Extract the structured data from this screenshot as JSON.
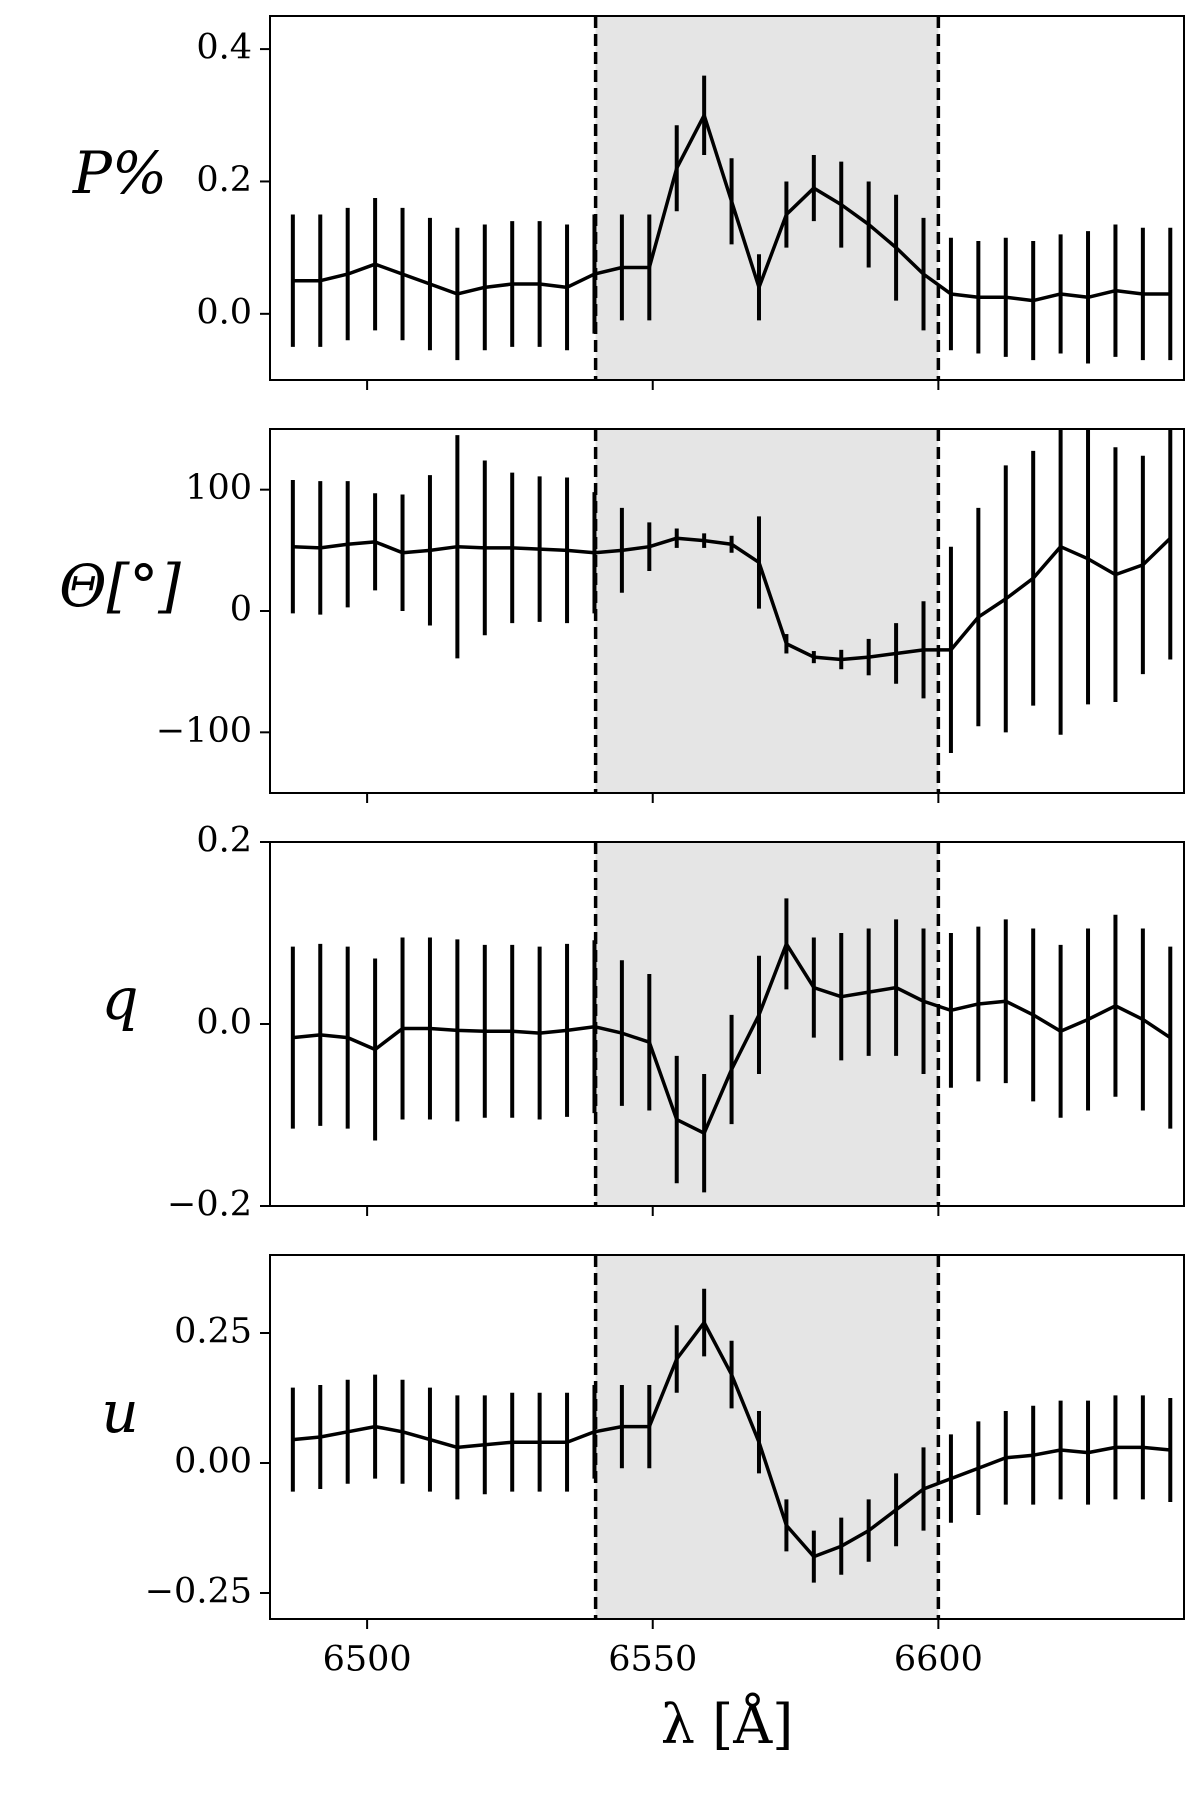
{
  "chart_data": [
    {
      "type": "line",
      "ylabel": "P%",
      "xlim": [
        6483,
        6643
      ],
      "xticks": [
        6500,
        6550,
        6600
      ],
      "highlight": [
        6540,
        6600
      ],
      "ylim": [
        -0.1,
        0.45
      ],
      "yticks": [
        {
          "value": 0,
          "label": "0.0"
        },
        0.2,
        0.4
      ],
      "x": [
        6487.0,
        6491.8,
        6496.6,
        6501.4,
        6506.2,
        6511.0,
        6515.8,
        6520.6,
        6525.4,
        6530.2,
        6535.0,
        6539.8,
        6544.6,
        6549.4,
        6554.2,
        6559.0,
        6563.8,
        6568.6,
        6573.4,
        6578.2,
        6583.0,
        6587.8,
        6592.6,
        6597.4,
        6602.2,
        6607.0,
        6611.8,
        6616.6,
        6621.4,
        6626.2,
        6631.0,
        6635.8,
        6640.6
      ],
      "values": [
        0.05,
        0.05,
        0.06,
        0.075,
        0.06,
        0.045,
        0.03,
        0.04,
        0.045,
        0.045,
        0.04,
        0.06,
        0.07,
        0.07,
        0.22,
        0.3,
        0.17,
        0.04,
        0.15,
        0.19,
        0.165,
        0.135,
        0.1,
        0.06,
        0.03,
        0.025,
        0.025,
        0.02,
        0.03,
        0.025,
        0.035,
        0.03,
        0.03
      ],
      "errors": [
        0.1,
        0.1,
        0.1,
        0.1,
        0.1,
        0.1,
        0.1,
        0.095,
        0.095,
        0.095,
        0.095,
        0.09,
        0.08,
        0.08,
        0.065,
        0.06,
        0.065,
        0.05,
        0.05,
        0.05,
        0.065,
        0.065,
        0.08,
        0.085,
        0.085,
        0.085,
        0.09,
        0.09,
        0.09,
        0.1,
        0.1,
        0.1,
        0.1
      ]
    },
    {
      "type": "line",
      "ylabel": "Θ[°]",
      "xlim": [
        6483,
        6643
      ],
      "xticks": [
        6500,
        6550,
        6600
      ],
      "highlight": [
        6540,
        6600
      ],
      "ylim": [
        -150,
        150
      ],
      "yticks": [
        {
          "value": -100,
          "label": "−100"
        },
        0,
        100
      ],
      "x": [
        6487.0,
        6491.8,
        6496.6,
        6501.4,
        6506.2,
        6511.0,
        6515.8,
        6520.6,
        6525.4,
        6530.2,
        6535.0,
        6539.8,
        6544.6,
        6549.4,
        6554.2,
        6559.0,
        6563.8,
        6568.6,
        6573.4,
        6578.2,
        6583.0,
        6587.8,
        6592.6,
        6597.4,
        6602.2,
        6607.0,
        6611.8,
        6616.6,
        6621.4,
        6626.2,
        6631.0,
        6635.8,
        6640.6
      ],
      "values": [
        53,
        52,
        55,
        57,
        48,
        50,
        53,
        52,
        52,
        51,
        50,
        48,
        50,
        53,
        60,
        58,
        55,
        40,
        -27,
        -38,
        -40,
        -38,
        -35,
        -32,
        -32,
        -5,
        10,
        27,
        53,
        43,
        30,
        38,
        60
      ],
      "errors": [
        55,
        55,
        52,
        40,
        48,
        62,
        92,
        72,
        62,
        60,
        60,
        50,
        35,
        20,
        8,
        6,
        7,
        38,
        8,
        5,
        8,
        15,
        25,
        40,
        85,
        90,
        110,
        105,
        155,
        120,
        105,
        90,
        100
      ]
    },
    {
      "type": "line",
      "ylabel": "q",
      "xlim": [
        6483,
        6643
      ],
      "xticks": [
        6500,
        6550,
        6600
      ],
      "highlight": [
        6540,
        6600
      ],
      "ylim": [
        -0.2,
        0.2
      ],
      "yticks": [
        {
          "value": -0.2,
          "label": "−0.2"
        },
        {
          "value": 0,
          "label": "0.0"
        },
        0.2
      ],
      "x": [
        6487.0,
        6491.8,
        6496.6,
        6501.4,
        6506.2,
        6511.0,
        6515.8,
        6520.6,
        6525.4,
        6530.2,
        6535.0,
        6539.8,
        6544.6,
        6549.4,
        6554.2,
        6559.0,
        6563.8,
        6568.6,
        6573.4,
        6578.2,
        6583.0,
        6587.8,
        6592.6,
        6597.4,
        6602.2,
        6607.0,
        6611.8,
        6616.6,
        6621.4,
        6626.2,
        6631.0,
        6635.8,
        6640.6
      ],
      "values": [
        -0.015,
        -0.012,
        -0.015,
        -0.028,
        -0.005,
        -0.005,
        -0.007,
        -0.008,
        -0.008,
        -0.01,
        -0.007,
        -0.003,
        -0.01,
        -0.02,
        -0.105,
        -0.12,
        -0.05,
        0.01,
        0.088,
        0.04,
        0.03,
        0.035,
        0.04,
        0.025,
        0.015,
        0.022,
        0.025,
        0.01,
        -0.008,
        0.005,
        0.02,
        0.005,
        -0.015
      ],
      "errors": [
        0.1,
        0.1,
        0.1,
        0.1,
        0.1,
        0.1,
        0.1,
        0.095,
        0.095,
        0.095,
        0.095,
        0.095,
        0.08,
        0.075,
        0.07,
        0.065,
        0.06,
        0.065,
        0.05,
        0.055,
        0.07,
        0.07,
        0.075,
        0.08,
        0.085,
        0.085,
        0.09,
        0.095,
        0.095,
        0.1,
        0.1,
        0.1,
        0.1
      ]
    },
    {
      "type": "line",
      "ylabel": "u",
      "xlabel": "λ [Å]",
      "xlim": [
        6483,
        6643
      ],
      "xticks": [
        6500,
        6550,
        6600
      ],
      "highlight": [
        6540,
        6600
      ],
      "ylim": [
        -0.3,
        0.4
      ],
      "yticks": [
        {
          "value": -0.25,
          "label": "−0.25"
        },
        {
          "value": 0,
          "label": "0.00"
        },
        0.25
      ],
      "x": [
        6487.0,
        6491.8,
        6496.6,
        6501.4,
        6506.2,
        6511.0,
        6515.8,
        6520.6,
        6525.4,
        6530.2,
        6535.0,
        6539.8,
        6544.6,
        6549.4,
        6554.2,
        6559.0,
        6563.8,
        6568.6,
        6573.4,
        6578.2,
        6583.0,
        6587.8,
        6592.6,
        6597.4,
        6602.2,
        6607.0,
        6611.8,
        6616.6,
        6621.4,
        6626.2,
        6631.0,
        6635.8,
        6640.6
      ],
      "values": [
        0.045,
        0.05,
        0.06,
        0.07,
        0.06,
        0.045,
        0.03,
        0.035,
        0.04,
        0.04,
        0.04,
        0.06,
        0.07,
        0.07,
        0.2,
        0.27,
        0.17,
        0.04,
        -0.12,
        -0.18,
        -0.16,
        -0.13,
        -0.09,
        -0.05,
        -0.03,
        -0.01,
        0.01,
        0.015,
        0.025,
        0.02,
        0.03,
        0.03,
        0.025
      ],
      "errors": [
        0.1,
        0.1,
        0.1,
        0.1,
        0.1,
        0.1,
        0.1,
        0.095,
        0.095,
        0.095,
        0.095,
        0.09,
        0.08,
        0.08,
        0.065,
        0.065,
        0.065,
        0.06,
        0.05,
        0.05,
        0.055,
        0.06,
        0.07,
        0.08,
        0.085,
        0.09,
        0.09,
        0.095,
        0.095,
        0.1,
        0.1,
        0.1,
        0.1
      ]
    }
  ]
}
